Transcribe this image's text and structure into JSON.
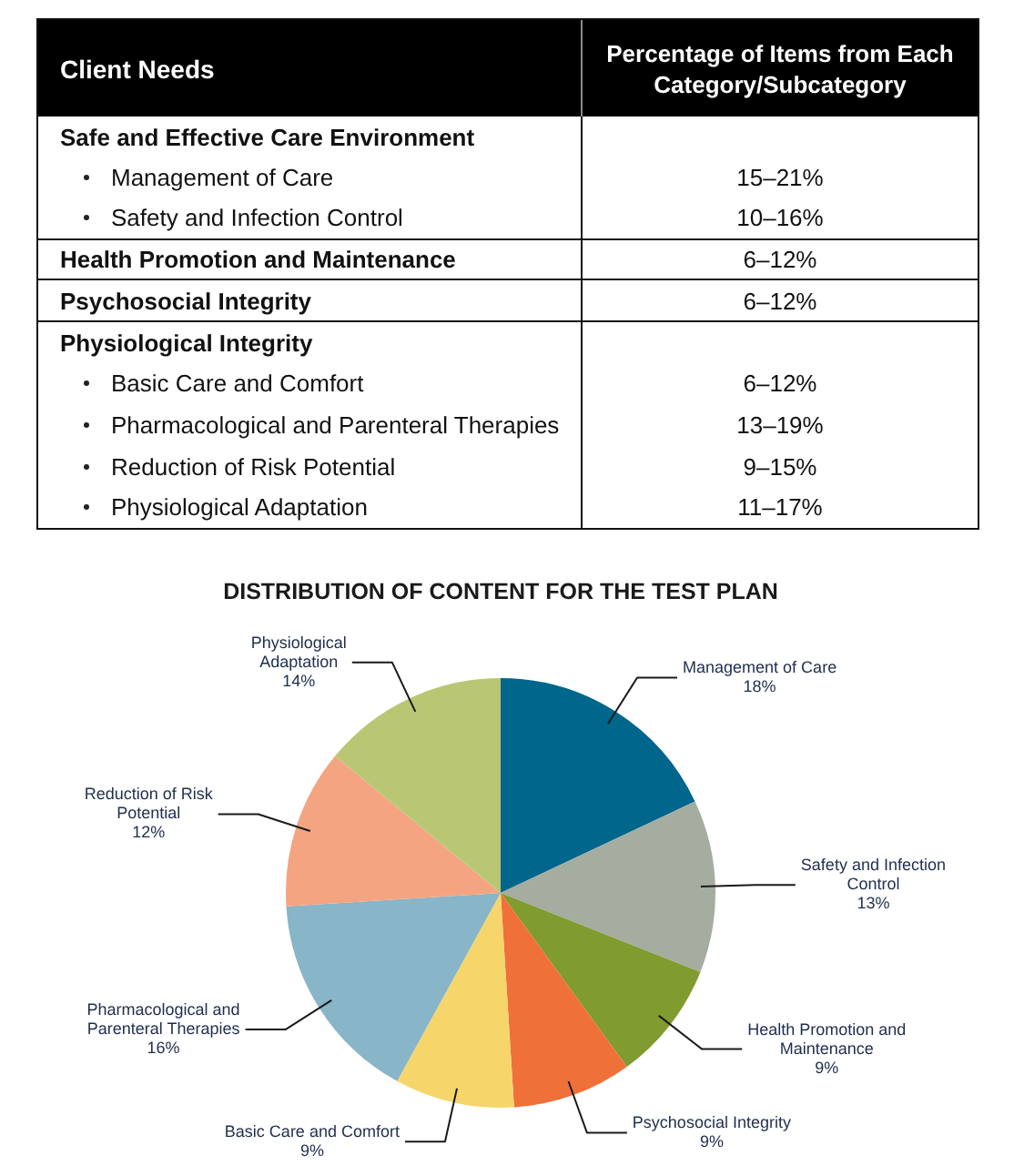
{
  "chart_data": [
    {
      "type": "other",
      "annotations": [
        "Client Needs",
        "Percentage of Items from Each Category/Subcategory",
        "Safe and Effective Care Environment",
        "Management of Care",
        "15–21%",
        "Safety and Infection Control",
        "10–16%",
        "Health Promotion and Maintenance",
        "6–12%",
        "Psychosocial Integrity",
        "6–12%",
        "Physiological Integrity",
        "Basic Care and Comfort",
        "6–12%",
        "Pharmacological and Parenteral Therapies",
        "13–19%",
        "Reduction of Risk Potential",
        "9–15%",
        "Physiological Adaptation",
        "11–17%"
      ]
    },
    {
      "type": "pie",
      "title": "DISTRIBUTION OF CONTENT FOR THE TEST PLAN",
      "categories": [
        "Management of Care",
        "Safety and Infection Control",
        "Health Promotion and Maintenance",
        "Psychosocial Integrity",
        "Basic Care and Comfort",
        "Pharmacological and Parenteral Therapies",
        "Reduction of Risk Potential",
        "Physiological Adaptation"
      ],
      "values": [
        18,
        13,
        9,
        9,
        9,
        16,
        12,
        14
      ],
      "colors": [
        "#00668b",
        "#a4ada0",
        "#809b30",
        "#f0703a",
        "#f6d66a",
        "#88b5c8",
        "#f4a480",
        "#b9c775"
      ],
      "value_labels": [
        "18%",
        "13%",
        "9%",
        "9%",
        "9%",
        "16%",
        "12%",
        "14%"
      ]
    }
  ]
}
